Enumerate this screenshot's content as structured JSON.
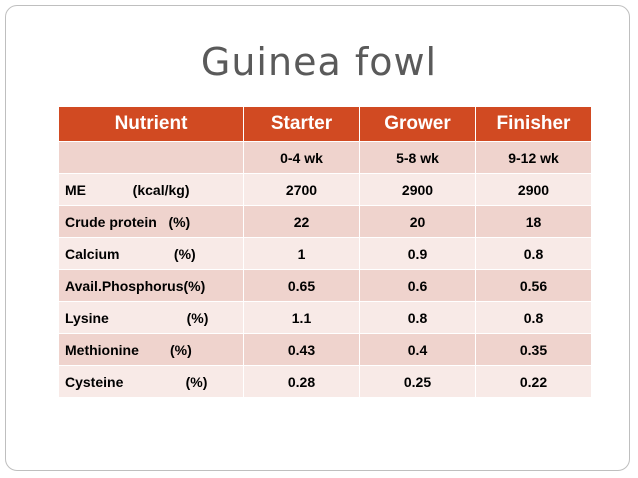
{
  "title": "Guinea fowl",
  "table": {
    "header": [
      "Nutrient",
      "Starter",
      "Grower",
      "Finisher"
    ],
    "ages": [
      "0-4 wk",
      "5-8 wk",
      "9-12 wk"
    ],
    "rows": [
      [
        "ME            (kcal/kg)",
        2700,
        2900,
        2900
      ],
      [
        "Crude protein   (%)",
        22,
        20,
        18
      ],
      [
        "Calcium              (%)",
        1,
        0.9,
        0.8
      ],
      [
        "Avail.Phosphorus(%)",
        0.65,
        0.6,
        0.56
      ],
      [
        "Lysine                    (%)",
        1.1,
        0.8,
        0.8
      ],
      [
        "Methionine        (%)",
        0.43,
        0.4,
        0.35
      ],
      [
        "Cysteine                (%)",
        0.28,
        0.25,
        0.22
      ]
    ]
  }
}
